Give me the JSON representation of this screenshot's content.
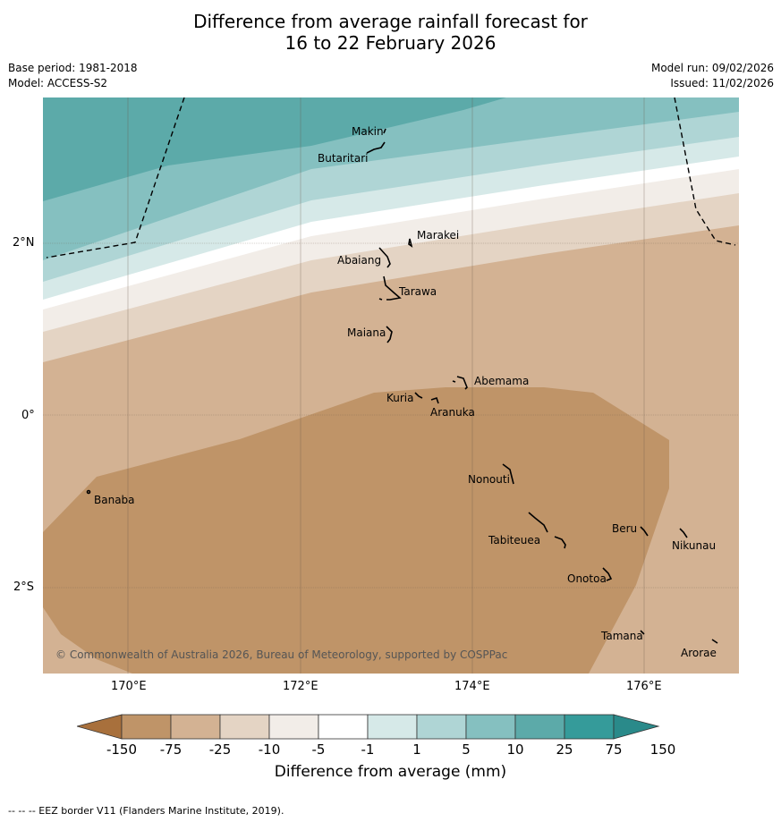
{
  "title_line1": "Difference from average rainfall forecast for",
  "title_line2": "16 to 22 February 2026",
  "base_period": "Base period: 1981-2018",
  "model": "Model: ACCESS-S2",
  "model_run": "Model run: 09/02/2026",
  "issued": "Issued: 11/02/2026",
  "axes": {
    "lon_labels": [
      "170°E",
      "172°E",
      "174°E",
      "176°E"
    ],
    "lat_labels": [
      "2°N",
      "0°",
      "2°S"
    ]
  },
  "places": {
    "makin": "Makin",
    "butaritari": "Butaritari",
    "marakei": "Marakei",
    "abaiang": "Abaiang",
    "tarawa": "Tarawa",
    "maiana": "Maiana",
    "abemama": "Abemama",
    "kuria": "Kuria",
    "aranuka": "Aranuka",
    "banaba": "Banaba",
    "nonouti": "Nonouti",
    "beru": "Beru",
    "nikunau": "Nikunau",
    "tabiteuea": "Tabiteuea",
    "onotoa": "Onotoa",
    "tamana": "Tamana",
    "arorae": "Arorae"
  },
  "copyright": "© Commonwealth of Australia 2026, Bureau of Meteorology, supported by COSPPac",
  "colorbar": {
    "labels": [
      "-150",
      "-75",
      "-25",
      "-10",
      "-5",
      "-1",
      "1",
      "5",
      "10",
      "25",
      "75",
      "150"
    ],
    "colors": [
      "#a8703c",
      "#bf9468",
      "#d3b293",
      "#e4d4c4",
      "#f2ede8",
      "#ffffff",
      "#d6e9e8",
      "#afd5d5",
      "#85c0c0",
      "#5caaa9",
      "#359b9a",
      "#2a8a8a"
    ],
    "title": "Difference from average (mm)"
  },
  "footer": "--  --  -- EEZ border V11 (Flanders Marine Institute, 2019)."
}
